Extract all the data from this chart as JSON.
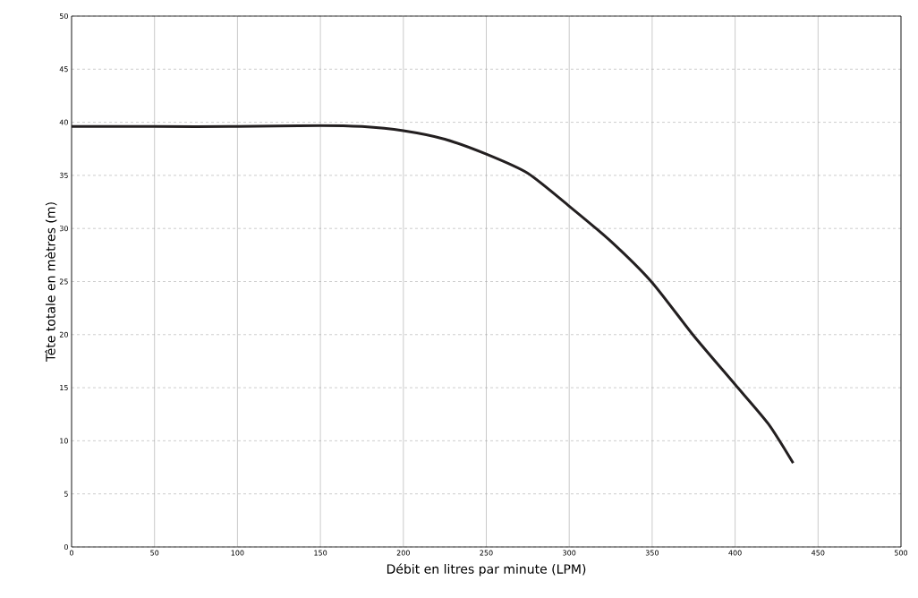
{
  "chart_data": {
    "type": "line",
    "xlabel": "Débit en litres par minute (LPM)",
    "ylabel": "Tête totale en mètres (m)",
    "x": [
      0,
      50,
      100,
      150,
      175,
      200,
      225,
      250,
      275,
      300,
      325,
      350,
      375,
      400,
      420,
      435
    ],
    "series": [
      {
        "color": "#231f20",
        "values": [
          39.6,
          39.6,
          39.6,
          39.7,
          39.6,
          39.2,
          38.4,
          37.0,
          35.2,
          32.1,
          28.8,
          24.9,
          19.9,
          15.3,
          11.6,
          7.9
        ]
      }
    ],
    "xlim": [
      0,
      500
    ],
    "ylim": [
      0,
      50
    ],
    "xticks": [
      0,
      50,
      100,
      150,
      200,
      250,
      300,
      350,
      400,
      450,
      500
    ],
    "yticks": [
      0,
      5,
      10,
      15,
      20,
      25,
      30,
      35,
      40,
      45,
      50
    ],
    "grid": true,
    "marker": "none",
    "line_style": "solid"
  }
}
